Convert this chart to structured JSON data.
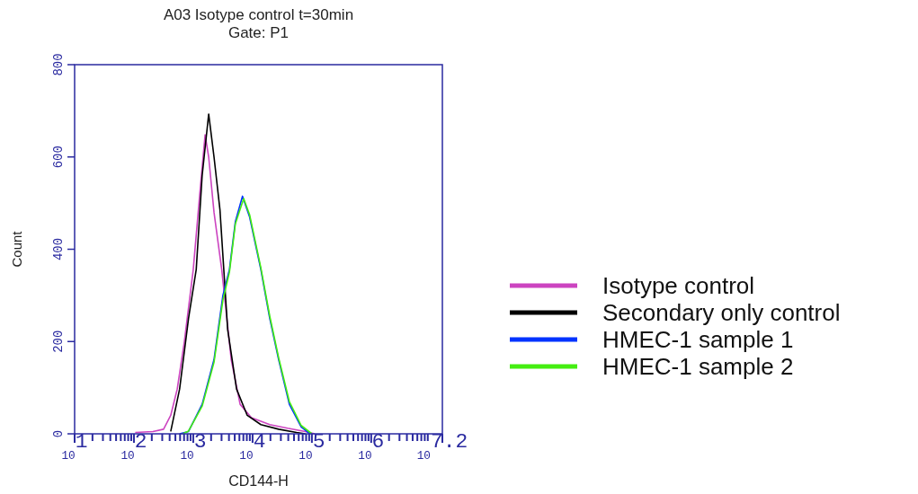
{
  "chart_data": {
    "type": "line",
    "title": "A03 Isotype control t=30min",
    "subtitle": "Gate: P1",
    "xlabel": "CD144-H",
    "ylabel": "Count",
    "log": "x",
    "xlim": [
      10,
      15848932
    ],
    "ylim": [
      0,
      800
    ],
    "yticks": [
      0,
      200,
      400,
      600,
      800
    ],
    "xticks": [
      {
        "value": 10,
        "label": "10$^{1}$"
      },
      {
        "value": 20,
        "label": null
      },
      {
        "value": 30,
        "label": null
      },
      {
        "value": 40,
        "label": null
      },
      {
        "value": 50,
        "label": null
      },
      {
        "value": 60,
        "label": null
      },
      {
        "value": 70,
        "label": null
      },
      {
        "value": 80,
        "label": null
      },
      {
        "value": 90,
        "label": null
      },
      {
        "value": 100,
        "label": "10$^{2}$"
      },
      {
        "value": 200,
        "label": null
      },
      {
        "value": 300,
        "label": null
      },
      {
        "value": 400,
        "label": null
      },
      {
        "value": 500,
        "label": null
      },
      {
        "value": 600,
        "label": null
      },
      {
        "value": 700,
        "label": null
      },
      {
        "value": 800,
        "label": null
      },
      {
        "value": 900,
        "label": null
      },
      {
        "value": 1000,
        "label": "10$^{3}$"
      },
      {
        "value": 2000,
        "label": null
      },
      {
        "value": 3000,
        "label": null
      },
      {
        "value": 4000,
        "label": null
      },
      {
        "value": 5000,
        "label": null
      },
      {
        "value": 6000,
        "label": null
      },
      {
        "value": 7000,
        "label": null
      },
      {
        "value": 8000,
        "label": null
      },
      {
        "value": 9000,
        "label": null
      },
      {
        "value": 10000,
        "label": "10$^{4}$"
      },
      {
        "value": 20000,
        "label": null
      },
      {
        "value": 30000,
        "label": null
      },
      {
        "value": 40000,
        "label": null
      },
      {
        "value": 50000,
        "label": null
      },
      {
        "value": 60000,
        "label": null
      },
      {
        "value": 70000,
        "label": null
      },
      {
        "value": 80000,
        "label": null
      },
      {
        "value": 90000,
        "label": null
      },
      {
        "value": 100000,
        "label": "10$^{5}$"
      },
      {
        "value": 200000,
        "label": null
      },
      {
        "value": 300000,
        "label": null
      },
      {
        "value": 400000,
        "label": null
      },
      {
        "value": 500000,
        "label": null
      },
      {
        "value": 600000,
        "label": null
      },
      {
        "value": 700000,
        "label": null
      },
      {
        "value": 800000,
        "label": null
      },
      {
        "value": 900000,
        "label": null
      },
      {
        "value": 1000000,
        "label": "10$^{6}$"
      },
      {
        "value": 2000000,
        "label": null
      },
      {
        "value": 3000000,
        "label": null
      },
      {
        "value": 4000000,
        "label": null
      },
      {
        "value": 5000000,
        "label": null
      },
      {
        "value": 6000000,
        "label": null
      },
      {
        "value": 7000000,
        "label": null
      },
      {
        "value": 8000000,
        "label": null
      },
      {
        "value": 9000000,
        "label": null
      },
      {
        "value": 15848932,
        "label": "10$^{7.2}$"
      }
    ],
    "grid": false,
    "legend": "right",
    "marker": "none",
    "line_style": "solid",
    "series": [
      {
        "name": "Isotype control",
        "color": "#cc44c0",
        "x": [
          105,
          209,
          316,
          417,
          537,
          708,
          1000,
          1288,
          1585,
          1820,
          2239,
          3020,
          4365,
          6166,
          9550,
          19500,
          38900,
          77600,
          112000
        ],
        "values": [
          3,
          5,
          10,
          40,
          97,
          200,
          356,
          520,
          648,
          600,
          480,
          356,
          161,
          64,
          35,
          20,
          12,
          5,
          0
        ]
      },
      {
        "name": "Secondary only control",
        "color": "#000000",
        "x": [
          417,
          589,
          832,
          1122,
          1413,
          1820,
          2239,
          2818,
          3802,
          5370,
          8128,
          13800,
          27500,
          55000,
          77600
        ],
        "values": [
          5,
          97,
          250,
          356,
          560,
          693,
          600,
          486,
          226,
          97,
          40,
          20,
          10,
          3,
          0
        ]
      },
      {
        "name": "HMEC-1 sample 1",
        "color": "#0033ff",
        "x": [
          589,
          832,
          1413,
          2239,
          3162,
          4074,
          5129,
          6761,
          8913,
          13800,
          19500,
          27500,
          41700,
          66100,
          93300
        ],
        "values": [
          0,
          5,
          64,
          161,
          300,
          356,
          460,
          515,
          470,
          356,
          250,
          161,
          64,
          15,
          0
        ]
      },
      {
        "name": "HMEC-1 sample 2",
        "color": "#44ee11",
        "x": [
          660,
          832,
          1413,
          2239,
          3162,
          4074,
          5129,
          7080,
          8913,
          13800,
          19500,
          27500,
          41700,
          66100,
          100000
        ],
        "values": [
          0,
          6,
          60,
          155,
          290,
          350,
          455,
          510,
          475,
          360,
          255,
          165,
          70,
          18,
          0
        ]
      }
    ]
  }
}
